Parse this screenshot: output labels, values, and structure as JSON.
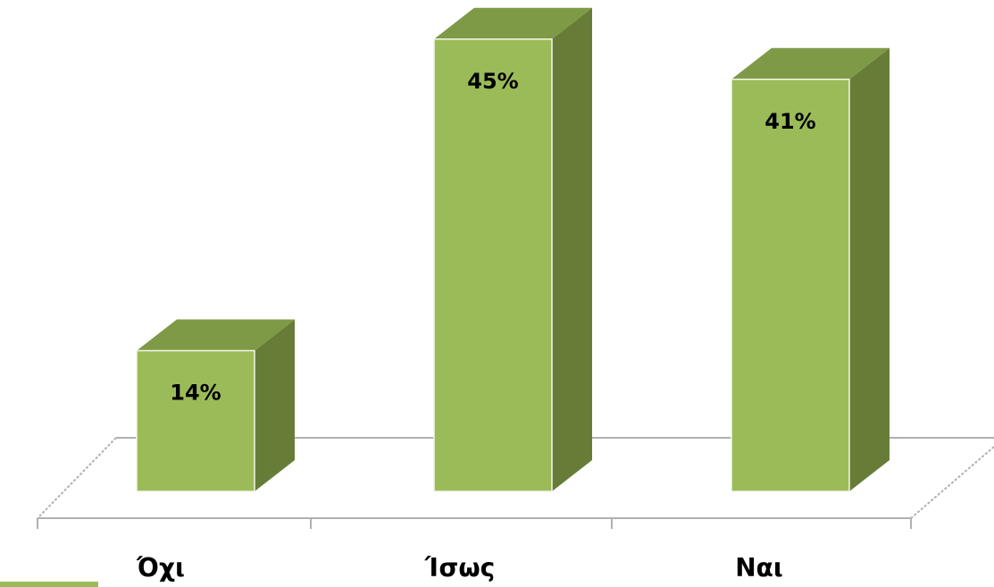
{
  "chart_data": {
    "type": "bar",
    "categories": [
      "Όχι",
      "Ίσως",
      "Ναι"
    ],
    "values": [
      14,
      45,
      41
    ],
    "value_labels": [
      "14%",
      "45%",
      "41%"
    ],
    "color": "#9bbb59"
  }
}
